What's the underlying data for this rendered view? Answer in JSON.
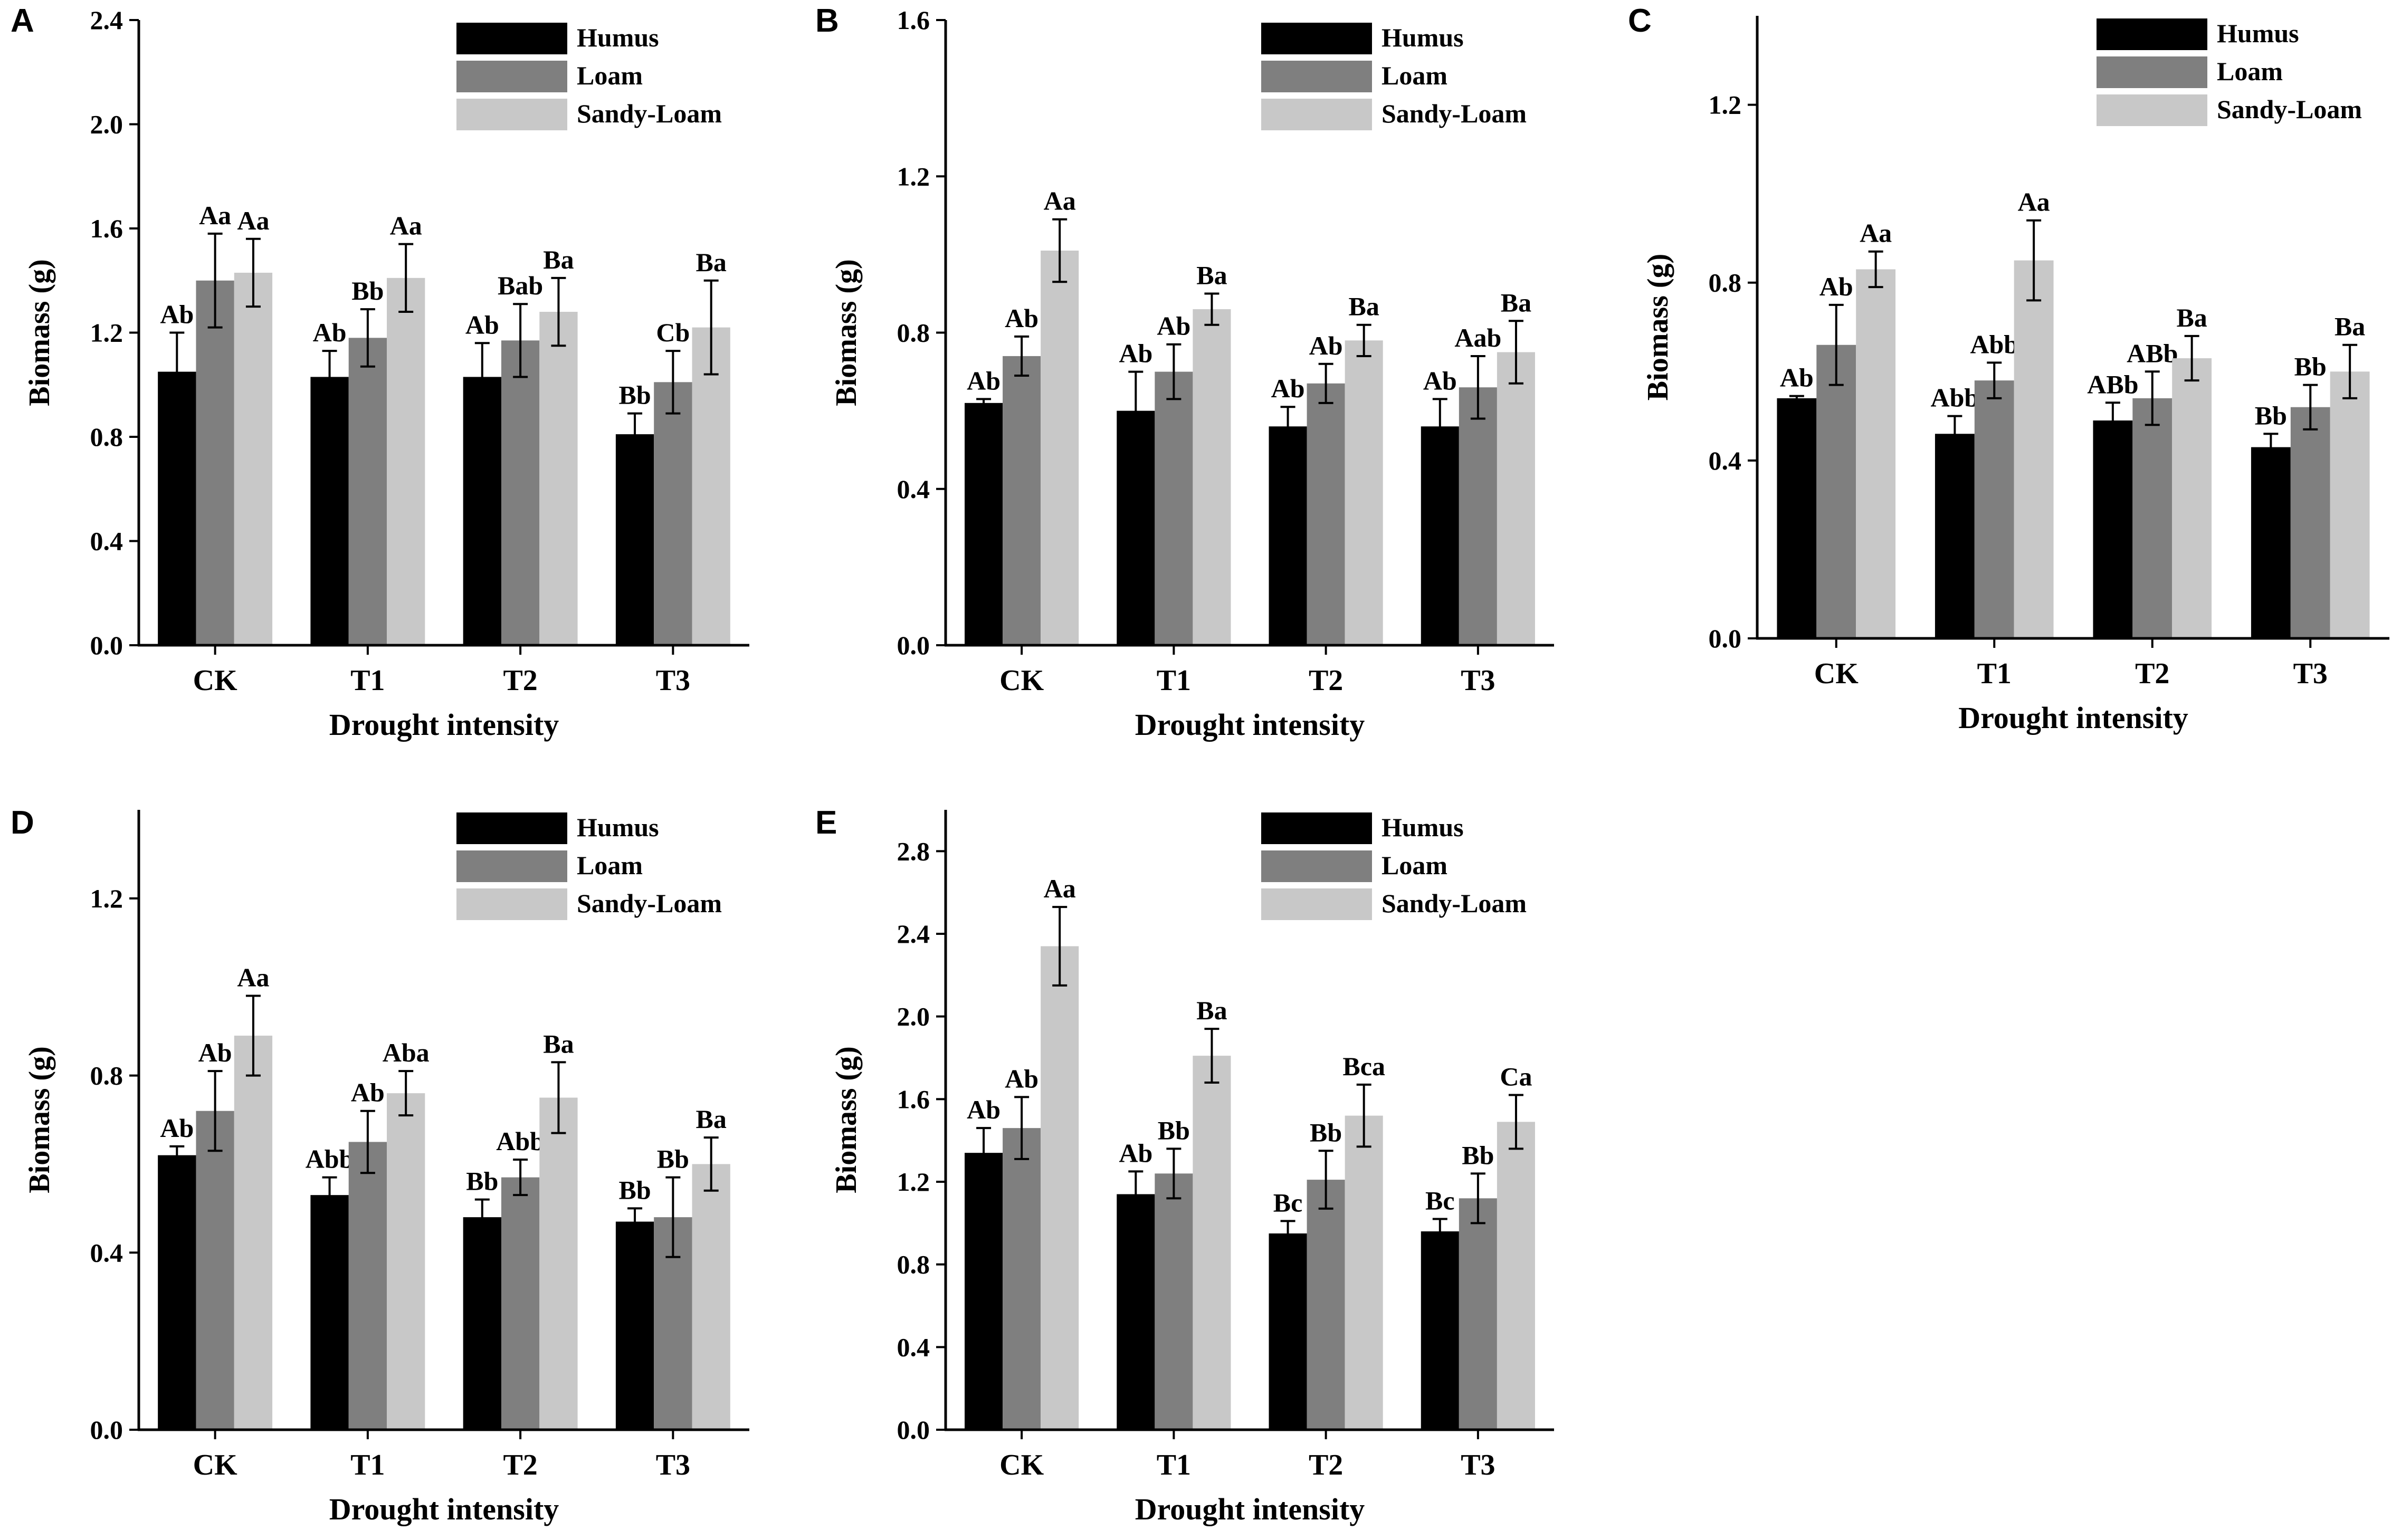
{
  "colors": {
    "humus": "#000000",
    "loam": "#7f7f7f",
    "sandy_loam": "#c8c8c8",
    "axis": "#000000"
  },
  "chart_data": [
    {
      "panel": "A",
      "type": "bar",
      "categories": [
        "CK",
        "T1",
        "T2",
        "T3"
      ],
      "xlabel": "Drought intensity",
      "ylabel": "Biomass (g)",
      "ylim": [
        0,
        2.4
      ],
      "yticks": [
        "0.0",
        "0.4",
        "0.8",
        "1.2",
        "1.6",
        "2.0",
        "2.4"
      ],
      "legend": "top-right",
      "series": [
        {
          "name": "Humus",
          "values": [
            1.05,
            1.03,
            1.03,
            0.81
          ],
          "errors": [
            0.15,
            0.1,
            0.13,
            0.08
          ],
          "labels": [
            "Ab",
            "Ab",
            "Ab",
            "Bb"
          ]
        },
        {
          "name": "Loam",
          "values": [
            1.4,
            1.18,
            1.17,
            1.01
          ],
          "errors": [
            0.18,
            0.11,
            0.14,
            0.12
          ],
          "labels": [
            "Aa",
            "Bb",
            "Bab",
            "Cb"
          ]
        },
        {
          "name": "Sandy-Loam",
          "values": [
            1.43,
            1.41,
            1.28,
            1.22
          ],
          "errors": [
            0.13,
            0.13,
            0.13,
            0.18
          ],
          "labels": [
            "Aa",
            "Aa",
            "Ba",
            "Ba"
          ]
        }
      ]
    },
    {
      "panel": "B",
      "type": "bar",
      "categories": [
        "CK",
        "T1",
        "T2",
        "T3"
      ],
      "xlabel": "Drought intensity",
      "ylabel": "Biomass (g)",
      "ylim": [
        0,
        1.6
      ],
      "yticks": [
        "0.0",
        "0.4",
        "0.8",
        "1.2",
        "1.6"
      ],
      "legend": "top-right",
      "series": [
        {
          "name": "Humus",
          "values": [
            0.62,
            0.6,
            0.56,
            0.56
          ],
          "errors": [
            0.01,
            0.1,
            0.05,
            0.07
          ],
          "labels": [
            "Ab",
            "Ab",
            "Ab",
            "Ab"
          ]
        },
        {
          "name": "Loam",
          "values": [
            0.74,
            0.7,
            0.67,
            0.66
          ],
          "errors": [
            0.05,
            0.07,
            0.05,
            0.08
          ],
          "labels": [
            "Ab",
            "Ab",
            "Ab",
            "Aab"
          ]
        },
        {
          "name": "Sandy-Loam",
          "values": [
            1.01,
            0.86,
            0.78,
            0.75
          ],
          "errors": [
            0.08,
            0.04,
            0.04,
            0.08
          ],
          "labels": [
            "Aa",
            "Ba",
            "Ba",
            "Ba"
          ]
        }
      ]
    },
    {
      "panel": "C",
      "type": "bar",
      "categories": [
        "CK",
        "T1",
        "T2",
        "T3"
      ],
      "xlabel": "Drought intensity",
      "ylabel": "Biomass (g)",
      "ylim": [
        0,
        1.4
      ],
      "yticks": [
        "0.0",
        "0.4",
        "0.8",
        "1.2"
      ],
      "legend": "top-right",
      "series": [
        {
          "name": "Humus",
          "values": [
            0.54,
            0.46,
            0.49,
            0.43
          ],
          "errors": [
            0.005,
            0.04,
            0.04,
            0.03
          ],
          "labels": [
            "Ab",
            "Abb",
            "ABb",
            "Bb"
          ]
        },
        {
          "name": "Loam",
          "values": [
            0.66,
            0.58,
            0.54,
            0.52
          ],
          "errors": [
            0.09,
            0.04,
            0.06,
            0.05
          ],
          "labels": [
            "Ab",
            "Abb",
            "ABb",
            "Bb"
          ]
        },
        {
          "name": "Sandy-Loam",
          "values": [
            0.83,
            0.85,
            0.63,
            0.6
          ],
          "errors": [
            0.04,
            0.09,
            0.05,
            0.06
          ],
          "labels": [
            "Aa",
            "Aa",
            "Ba",
            "Ba"
          ]
        }
      ]
    },
    {
      "panel": "D",
      "type": "bar",
      "categories": [
        "CK",
        "T1",
        "T2",
        "T3"
      ],
      "xlabel": "Drought intensity",
      "ylabel": "Biomass (g)",
      "ylim": [
        0,
        1.4
      ],
      "yticks": [
        "0.0",
        "0.4",
        "0.8",
        "1.2"
      ],
      "legend": "top-right",
      "series": [
        {
          "name": "Humus",
          "values": [
            0.62,
            0.53,
            0.48,
            0.47
          ],
          "errors": [
            0.02,
            0.04,
            0.04,
            0.03
          ],
          "labels": [
            "Ab",
            "Abb",
            "Bb",
            "Bb"
          ]
        },
        {
          "name": "Loam",
          "values": [
            0.72,
            0.65,
            0.57,
            0.48
          ],
          "errors": [
            0.09,
            0.07,
            0.04,
            0.09
          ],
          "labels": [
            "Ab",
            "Ab",
            "Abb",
            "Bb"
          ]
        },
        {
          "name": "Sandy-Loam",
          "values": [
            0.89,
            0.76,
            0.75,
            0.6
          ],
          "errors": [
            0.09,
            0.05,
            0.08,
            0.06
          ],
          "labels": [
            "Aa",
            "Aba",
            "Ba",
            "Ba"
          ]
        }
      ]
    },
    {
      "panel": "E",
      "type": "bar",
      "categories": [
        "CK",
        "T1",
        "T2",
        "T3"
      ],
      "xlabel": "Drought intensity",
      "ylabel": "Biomass (g)",
      "ylim": [
        0,
        3.0
      ],
      "yticks": [
        "0.0",
        "0.4",
        "0.8",
        "1.2",
        "1.6",
        "2.0",
        "2.4",
        "2.8"
      ],
      "legend": "top-right",
      "series": [
        {
          "name": "Humus",
          "values": [
            1.34,
            1.14,
            0.95,
            0.96
          ],
          "errors": [
            0.12,
            0.11,
            0.06,
            0.06
          ],
          "labels": [
            "Ab",
            "Ab",
            "Bc",
            "Bc"
          ]
        },
        {
          "name": "Loam",
          "values": [
            1.46,
            1.24,
            1.21,
            1.12
          ],
          "errors": [
            0.15,
            0.12,
            0.14,
            0.12
          ],
          "labels": [
            "Ab",
            "Bb",
            "Bb",
            "Bb"
          ]
        },
        {
          "name": "Sandy-Loam",
          "values": [
            2.34,
            1.81,
            1.52,
            1.49
          ],
          "errors": [
            0.19,
            0.13,
            0.15,
            0.13
          ],
          "labels": [
            "Aa",
            "Ba",
            "Bca",
            "Ca"
          ]
        }
      ]
    }
  ]
}
